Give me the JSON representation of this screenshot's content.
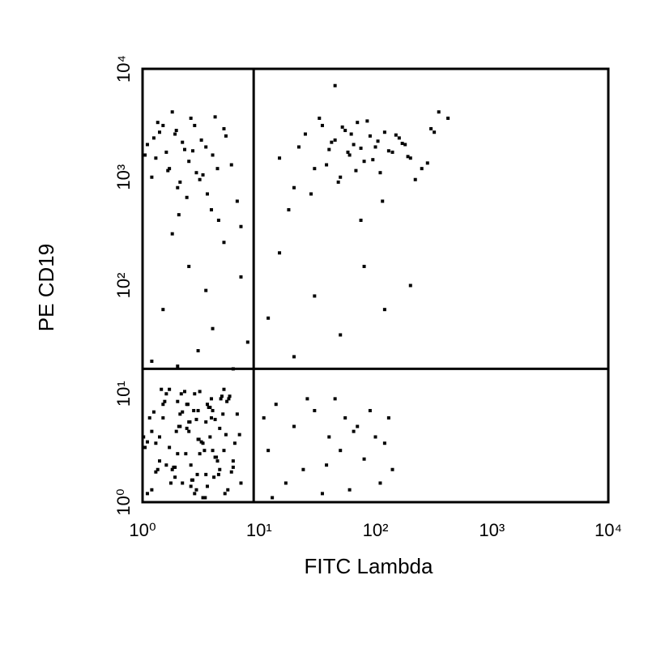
{
  "chart_data": {
    "type": "scatter",
    "x_label": "FITC Lambda",
    "y_label": "PE CD19",
    "xscale": "log",
    "yscale": "log",
    "color": "#000000",
    "xlim": [
      1,
      10000
    ],
    "ylim": [
      1,
      10000
    ],
    "xticks": [
      {
        "value": 1,
        "label": "10⁰"
      },
      {
        "value": 10,
        "label": "10¹"
      },
      {
        "value": 100,
        "label": "10²"
      },
      {
        "value": 1000,
        "label": "10³"
      },
      {
        "value": 10000,
        "label": "10⁴"
      }
    ],
    "yticks": [
      {
        "value": 1,
        "label": "10⁰"
      },
      {
        "value": 10,
        "label": "10¹"
      },
      {
        "value": 100,
        "label": "10²"
      },
      {
        "value": 1000,
        "label": "10³"
      },
      {
        "value": 10000,
        "label": "10⁴"
      }
    ],
    "quadrants": {
      "x": 9,
      "y": 17
    },
    "x": [
      1.1,
      1.3,
      1.5,
      1.8,
      2,
      2.2,
      2.5,
      2.8,
      3.1,
      3.5,
      4,
      4.5,
      5,
      5.5,
      6,
      6.5,
      1.2,
      1.4,
      1.7,
      1.9,
      2.1,
      2.4,
      2.7,
      3,
      3.3,
      3.8,
      4.2,
      4.8,
      5.2,
      5.8,
      1.05,
      1.25,
      1.6,
      2.3,
      2.6,
      2.9,
      3.2,
      3.6,
      4.1,
      4.6,
      5.1,
      6.2,
      1.15,
      1.35,
      1.55,
      1.75,
      1.95,
      2.15,
      2.35,
      2.55,
      2.75,
      2.95,
      3.4,
      3.9,
      4.4,
      4.9,
      5.4,
      1.02,
      1.45,
      1.85,
      2.05,
      2.45,
      2.65,
      3.05,
      3.45,
      3.7,
      4.3,
      5.6,
      6.8,
      1.3,
      1.7,
      2.2,
      2.6,
      3.1,
      3.6,
      4.2,
      1.1,
      1.5,
      1.9,
      2.4,
      2.8,
      3.3,
      3.9,
      4.6,
      5.3,
      7,
      1.2,
      1.6,
      2,
      2.5,
      3,
      3.5,
      4,
      4.7,
      1.4,
      2.1,
      2.9,
      3.8,
      5,
      6,
      1.1,
      1.3,
      1.5,
      1.7,
      1.9,
      2.1,
      2.3,
      2.6,
      2.9,
      3.2,
      3.6,
      4,
      4.5,
      5,
      5.8,
      6.5,
      1.2,
      1.4,
      1.6,
      1.8,
      2,
      2.2,
      2.5,
      2.8,
      3.1,
      3.5,
      3.9,
      4.4,
      5.2,
      7,
      1.05,
      1.35,
      1.65,
      1.95,
      2.4,
      2.7,
      3.3,
      4.2,
      1.25,
      2.05,
      15,
      20,
      25,
      30,
      35,
      40,
      45,
      50,
      55,
      60,
      65,
      70,
      80,
      90,
      100,
      110,
      120,
      140,
      160,
      180,
      200,
      250,
      300,
      350,
      420,
      18,
      22,
      28,
      33,
      38,
      42,
      48,
      52,
      58,
      62,
      68,
      75,
      85,
      95,
      105,
      115,
      130,
      150,
      170,
      190,
      220,
      280,
      320,
      45,
      75,
      11,
      12,
      14,
      17,
      20,
      24,
      30,
      35,
      40,
      45,
      50,
      55,
      60,
      70,
      80,
      90,
      100,
      110,
      120,
      130,
      140,
      13,
      26,
      38,
      65,
      1.2,
      1.5,
      2,
      2.5,
      3,
      3.5,
      4,
      5,
      6,
      7,
      8,
      12,
      15,
      20,
      30,
      50,
      80,
      120,
      200,
      1.8
    ],
    "y": [
      1.2,
      3.5,
      6,
      2,
      8.5,
      1.5,
      4.5,
      10,
      2.8,
      5.5,
      7,
      1.8,
      3,
      9,
      2.4,
      6.5,
      1.3,
      4,
      11,
      2.1,
      5,
      8,
      1.6,
      3.8,
      1.1,
      7.5,
      2.6,
      9.5,
      4.2,
      1.9,
      3.2,
      6.8,
      2.2,
      10.5,
      1.4,
      5.8,
      3.6,
      8,
      1.7,
      4.8,
      1.2,
      3.5,
      6,
      2,
      8.5,
      1.5,
      4.5,
      10,
      2.8,
      5.5,
      7,
      1.8,
      3,
      9,
      2.4,
      6.5,
      1.3,
      4,
      11,
      2.1,
      5,
      8,
      1.6,
      3.8,
      1.1,
      7.5,
      2.6,
      9.5,
      4.2,
      1.9,
      3.2,
      6.8,
      2.2,
      10.5,
      1.4,
      5.8,
      3.6,
      8,
      1.7,
      4.8,
      1.2,
      3.5,
      6,
      2,
      8.5,
      1.5,
      4.5,
      10,
      2.8,
      5.5,
      7,
      1.8,
      3,
      9,
      2.4,
      6.5,
      1.3,
      4,
      11,
      2.1,
      2000,
      1500,
      3000,
      1200,
      2500,
      900,
      1800,
      3500,
      1100,
      2200,
      700,
      1600,
      400,
      2800,
      1300,
      600,
      1000,
      2600,
      1700,
      4000,
      800,
      2100,
      1400,
      3000,
      950,
      1900,
      500,
      1200,
      2400,
      350,
      1600,
      3200,
      1150,
      2700,
      650,
      1750,
      1050,
      3600,
      2300,
      450,
      1500,
      800,
      2500,
      1200,
      3000,
      1800,
      2200,
      1000,
      2700,
      1600,
      2000,
      3200,
      1400,
      2400,
      1900,
      1100,
      2600,
      1700,
      2300,
      2000,
      1500,
      1200,
      2800,
      4000,
      3500,
      500,
      1900,
      700,
      3500,
      1300,
      2100,
      900,
      2900,
      1700,
      2500,
      1150,
      1850,
      3300,
      1450,
      2150,
      600,
      1750,
      2450,
      2050,
      1550,
      950,
      1350,
      2600,
      7000,
      400,
      6,
      3,
      8,
      1.5,
      5,
      2,
      7,
      1.2,
      4,
      9,
      3,
      6,
      1.3,
      5,
      2.5,
      7,
      4,
      1.5,
      3.5,
      6,
      2,
      1.1,
      9,
      2.2,
      4.5,
      20,
      60,
      18,
      150,
      25,
      90,
      40,
      250,
      17,
      120,
      30,
      50,
      200,
      22,
      80,
      35,
      150,
      60,
      100,
      300
    ]
  }
}
